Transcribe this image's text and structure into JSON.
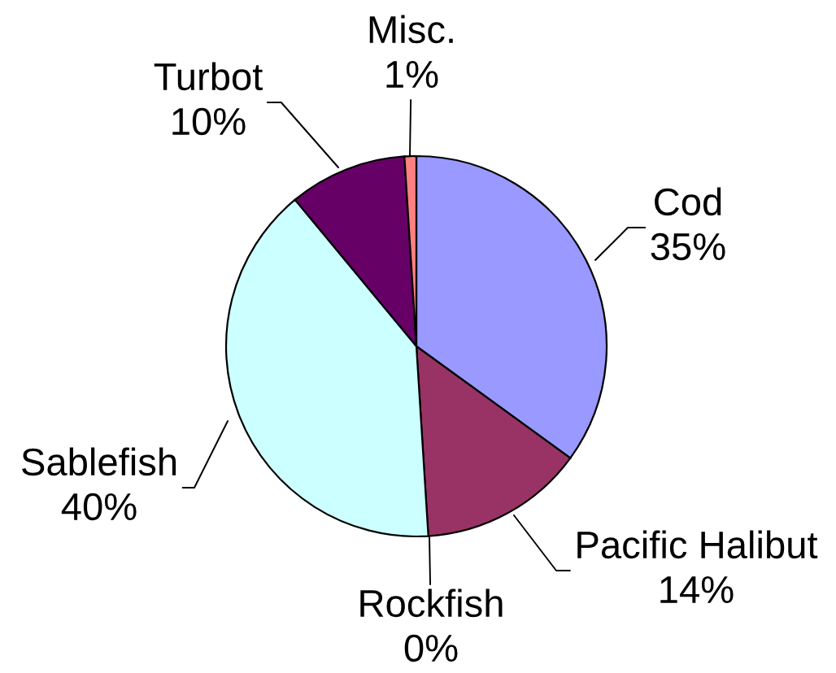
{
  "chart_data": {
    "type": "pie",
    "categories": [
      "Cod",
      "Pacific Halibut",
      "Rockfish",
      "Sablefish",
      "Turbot",
      "Misc."
    ],
    "values": [
      35,
      14,
      0,
      40,
      10,
      1
    ],
    "colors": [
      "#9999ff",
      "#993366",
      "#ffffcc",
      "#ccffff",
      "#660066",
      "#ff8080"
    ],
    "value_labels": [
      "35%",
      "14%",
      "0%",
      "40%",
      "10%",
      "1%"
    ]
  }
}
